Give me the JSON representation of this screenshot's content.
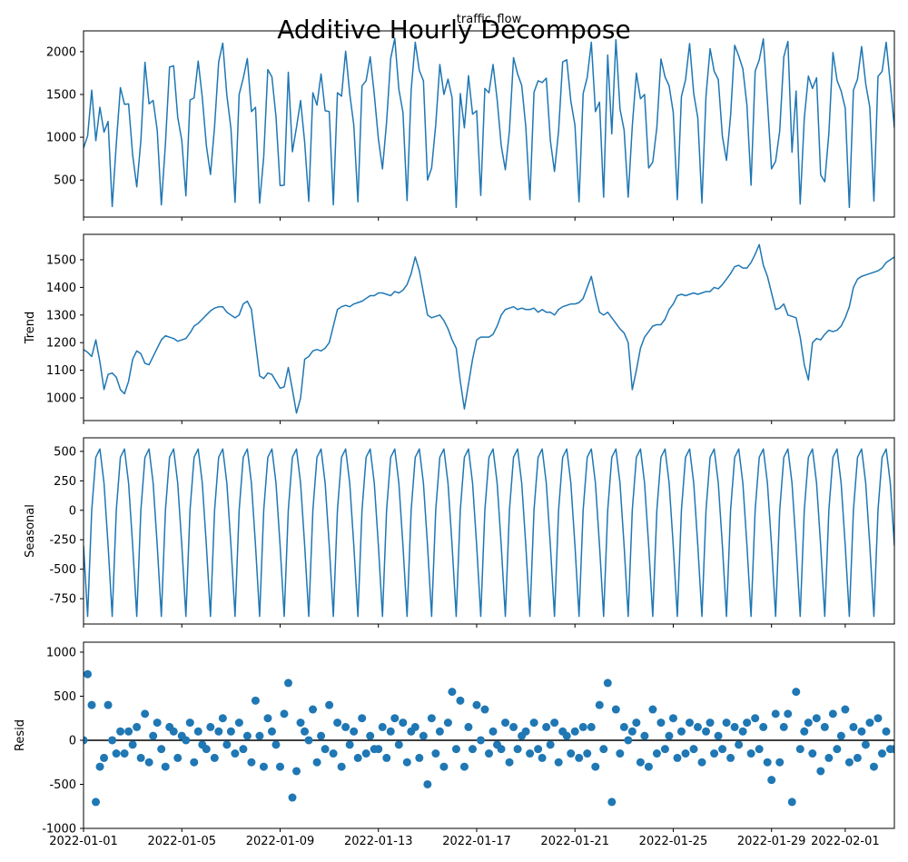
{
  "chart_data": {
    "type": "decompose",
    "title": "Additive Hourly Decompose",
    "x": [
      "2022-01-01T00:00",
      "2022-01-01T04:00",
      "2022-01-01T08:00",
      "2022-01-01T12:00",
      "2022-01-01T16:00",
      "2022-01-01T20:00",
      "2022-01-02T00:00",
      "2022-01-02T04:00",
      "2022-01-02T08:00",
      "2022-01-02T12:00",
      "2022-01-02T16:00",
      "2022-01-02T20:00",
      "2022-01-03T00:00",
      "2022-01-03T04:00",
      "2022-01-03T08:00",
      "2022-01-03T12:00",
      "2022-01-03T16:00",
      "2022-01-03T20:00",
      "2022-01-04T00:00",
      "2022-01-04T04:00",
      "2022-01-04T08:00",
      "2022-01-04T12:00",
      "2022-01-04T16:00",
      "2022-01-04T20:00",
      "2022-01-05T00:00",
      "2022-01-05T04:00",
      "2022-01-05T08:00",
      "2022-01-05T12:00",
      "2022-01-05T16:00",
      "2022-01-05T20:00",
      "2022-01-06T00:00",
      "2022-01-06T04:00",
      "2022-01-06T08:00",
      "2022-01-06T12:00",
      "2022-01-06T16:00",
      "2022-01-06T20:00",
      "2022-01-07T00:00",
      "2022-01-07T04:00",
      "2022-01-07T08:00",
      "2022-01-07T12:00",
      "2022-01-07T16:00",
      "2022-01-07T20:00",
      "2022-01-08T00:00",
      "2022-01-08T04:00",
      "2022-01-08T08:00",
      "2022-01-08T12:00",
      "2022-01-08T16:00",
      "2022-01-08T20:00",
      "2022-01-09T00:00",
      "2022-01-09T04:00",
      "2022-01-09T08:00",
      "2022-01-09T12:00",
      "2022-01-09T16:00",
      "2022-01-09T20:00",
      "2022-01-10T00:00",
      "2022-01-10T04:00",
      "2022-01-10T08:00",
      "2022-01-10T12:00",
      "2022-01-10T16:00",
      "2022-01-10T20:00",
      "2022-01-11T00:00",
      "2022-01-11T04:00",
      "2022-01-11T08:00",
      "2022-01-11T12:00",
      "2022-01-11T16:00",
      "2022-01-11T20:00",
      "2022-01-12T00:00",
      "2022-01-12T04:00",
      "2022-01-12T08:00",
      "2022-01-12T12:00",
      "2022-01-12T16:00",
      "2022-01-12T20:00",
      "2022-01-13T00:00",
      "2022-01-13T04:00",
      "2022-01-13T08:00",
      "2022-01-13T12:00",
      "2022-01-13T16:00",
      "2022-01-13T20:00",
      "2022-01-14T00:00",
      "2022-01-14T04:00",
      "2022-01-14T08:00",
      "2022-01-14T12:00",
      "2022-01-14T16:00",
      "2022-01-14T20:00",
      "2022-01-15T00:00",
      "2022-01-15T04:00",
      "2022-01-15T08:00",
      "2022-01-15T12:00",
      "2022-01-15T16:00",
      "2022-01-15T20:00",
      "2022-01-16T00:00",
      "2022-01-16T04:00",
      "2022-01-16T08:00",
      "2022-01-16T12:00",
      "2022-01-16T16:00",
      "2022-01-16T20:00",
      "2022-01-17T00:00",
      "2022-01-17T04:00",
      "2022-01-17T08:00",
      "2022-01-17T12:00",
      "2022-01-17T16:00",
      "2022-01-17T20:00",
      "2022-01-18T00:00",
      "2022-01-18T04:00",
      "2022-01-18T08:00",
      "2022-01-18T12:00",
      "2022-01-18T16:00",
      "2022-01-18T20:00",
      "2022-01-19T00:00",
      "2022-01-19T04:00",
      "2022-01-19T08:00",
      "2022-01-19T12:00",
      "2022-01-19T16:00",
      "2022-01-19T20:00",
      "2022-01-20T00:00",
      "2022-01-20T04:00",
      "2022-01-20T08:00",
      "2022-01-20T12:00",
      "2022-01-20T16:00",
      "2022-01-20T20:00",
      "2022-01-21T00:00",
      "2022-01-21T04:00",
      "2022-01-21T08:00",
      "2022-01-21T12:00",
      "2022-01-21T16:00",
      "2022-01-21T20:00",
      "2022-01-22T00:00",
      "2022-01-22T04:00",
      "2022-01-22T08:00",
      "2022-01-22T12:00",
      "2022-01-22T16:00",
      "2022-01-22T20:00",
      "2022-01-23T00:00",
      "2022-01-23T04:00",
      "2022-01-23T08:00",
      "2022-01-23T12:00",
      "2022-01-23T16:00",
      "2022-01-23T20:00",
      "2022-01-24T00:00",
      "2022-01-24T04:00",
      "2022-01-24T08:00",
      "2022-01-24T12:00",
      "2022-01-24T16:00",
      "2022-01-24T20:00",
      "2022-01-25T00:00",
      "2022-01-25T04:00",
      "2022-01-25T08:00",
      "2022-01-25T12:00",
      "2022-01-25T16:00",
      "2022-01-25T20:00",
      "2022-01-26T00:00",
      "2022-01-26T04:00",
      "2022-01-26T08:00",
      "2022-01-26T12:00",
      "2022-01-26T16:00",
      "2022-01-26T20:00",
      "2022-01-27T00:00",
      "2022-01-27T04:00",
      "2022-01-27T08:00",
      "2022-01-27T12:00",
      "2022-01-27T16:00",
      "2022-01-27T20:00",
      "2022-01-28T00:00",
      "2022-01-28T04:00",
      "2022-01-28T08:00",
      "2022-01-28T12:00",
      "2022-01-28T16:00",
      "2022-01-28T20:00",
      "2022-01-29T00:00",
      "2022-01-29T04:00",
      "2022-01-29T08:00",
      "2022-01-29T12:00",
      "2022-01-29T16:00",
      "2022-01-29T20:00",
      "2022-01-30T00:00",
      "2022-01-30T04:00",
      "2022-01-30T08:00",
      "2022-01-30T12:00",
      "2022-01-30T16:00",
      "2022-01-30T20:00",
      "2022-01-31T00:00",
      "2022-01-31T04:00",
      "2022-01-31T08:00",
      "2022-01-31T12:00",
      "2022-01-31T16:00",
      "2022-01-31T20:00",
      "2022-02-01T00:00",
      "2022-02-01T04:00",
      "2022-02-01T08:00",
      "2022-02-01T12:00",
      "2022-02-01T16:00",
      "2022-02-01T20:00",
      "2022-02-02T00:00",
      "2022-02-02T04:00",
      "2022-02-02T08:00",
      "2022-02-02T12:00",
      "2022-02-02T16:00",
      "2022-02-02T20:00",
      "2022-02-03T00:00"
    ],
    "xlim": [
      "2022-01-01T00:00",
      "2022-02-03T00:00"
    ],
    "xticks": [
      "2022-01-01",
      "2022-01-05",
      "2022-01-09",
      "2022-01-13",
      "2022-01-17",
      "2022-01-21",
      "2022-01-25",
      "2022-01-29",
      "2022-02-01"
    ],
    "panels": [
      {
        "type": "line",
        "title": "traffic_flow",
        "color": "#1f77b4",
        "ylim": [
          67,
          2243
        ],
        "yticks": [
          500,
          1000,
          1500,
          2000
        ],
        "values": [
          875,
          1015,
          1550,
          960,
          1350,
          1060,
          1185,
          190,
          925,
          1580,
          1385,
          1390,
          790,
          420,
          960,
          1875,
          1390,
          1430,
          1080,
          210,
          925,
          1820,
          1835,
          1235,
          960,
          315,
          1435,
          1460,
          1890,
          1465,
          900,
          565,
          1125,
          1880,
          2100,
          1490,
          1100,
          240,
          1500,
          1690,
          1920,
          1300,
          1350,
          230,
          770,
          1790,
          1705,
          1240,
          435,
          440,
          1760,
          830,
          1115,
          1430,
          940,
          250,
          1520,
          1375,
          1740,
          1310,
          1300,
          210,
          1520,
          1480,
          2005,
          1510,
          1140,
          245,
          1600,
          1660,
          1940,
          1500,
          980,
          630,
          1175,
          1920,
          2155,
          1560,
          1290,
          260,
          1550,
          2110,
          1780,
          1660,
          500,
          640,
          1145,
          1850,
          1500,
          1680,
          1460,
          180,
          1510,
          1110,
          1720,
          1270,
          1310,
          320,
          1570,
          1520,
          1850,
          1440,
          900,
          620,
          1075,
          1930,
          1740,
          1605,
          1120,
          270,
          1525,
          1660,
          1640,
          1690,
          960,
          600,
          1070,
          1880,
          1905,
          1420,
          1140,
          245,
          1510,
          1700,
          2110,
          1300,
          1410,
          300,
          1960,
          1040,
          2140,
          1330,
          1085,
          300,
          1130,
          1750,
          1450,
          1500,
          640,
          710,
          1115,
          1915,
          1705,
          1600,
          1290,
          270,
          1475,
          1670,
          2095,
          1510,
          1225,
          230,
          1485,
          2035,
          1770,
          1675,
          1010,
          730,
          1250,
          2075,
          1950,
          1800,
          1370,
          440,
          1770,
          1905,
          2150,
          1420,
          630,
          720,
          1075,
          1940,
          2120,
          825,
          1540,
          220,
          1220,
          1715,
          1570,
          1695,
          560,
          480,
          1045,
          1990,
          1665,
          1540,
          1340,
          180,
          1550,
          1680,
          2060,
          1625,
          1350,
          255,
          1710,
          1770,
          2110,
          1630,
          1110
        ]
      },
      {
        "type": "line",
        "ylabel": "Trend",
        "color": "#1f77b4",
        "ylim": [
          918,
          1592
        ],
        "yticks": [
          1000,
          1100,
          1200,
          1300,
          1400,
          1500
        ],
        "values": [
          1175,
          1165,
          1150,
          1210,
          1130,
          1030,
          1085,
          1090,
          1075,
          1030,
          1015,
          1060,
          1140,
          1170,
          1160,
          1125,
          1120,
          1150,
          1180,
          1210,
          1225,
          1220,
          1215,
          1205,
          1210,
          1215,
          1235,
          1260,
          1270,
          1285,
          1300,
          1315,
          1325,
          1330,
          1330,
          1310,
          1300,
          1290,
          1300,
          1340,
          1350,
          1320,
          1200,
          1080,
          1070,
          1090,
          1085,
          1060,
          1035,
          1040,
          1110,
          1030,
          945,
          1000,
          1140,
          1150,
          1170,
          1175,
          1170,
          1180,
          1200,
          1260,
          1320,
          1330,
          1335,
          1330,
          1340,
          1345,
          1350,
          1360,
          1370,
          1370,
          1380,
          1380,
          1375,
          1370,
          1385,
          1380,
          1390,
          1410,
          1450,
          1510,
          1460,
          1380,
          1300,
          1290,
          1295,
          1300,
          1280,
          1250,
          1210,
          1180,
          1060,
          960,
          1050,
          1140,
          1210,
          1220,
          1220,
          1220,
          1230,
          1260,
          1300,
          1320,
          1325,
          1330,
          1320,
          1325,
          1320,
          1320,
          1325,
          1310,
          1320,
          1310,
          1310,
          1300,
          1320,
          1330,
          1335,
          1340,
          1340,
          1345,
          1360,
          1400,
          1440,
          1370,
          1310,
          1300,
          1310,
          1290,
          1270,
          1250,
          1235,
          1200,
          1030,
          1100,
          1180,
          1220,
          1240,
          1260,
          1265,
          1265,
          1285,
          1320,
          1340,
          1370,
          1375,
          1370,
          1375,
          1380,
          1375,
          1380,
          1385,
          1385,
          1400,
          1395,
          1410,
          1430,
          1450,
          1475,
          1480,
          1470,
          1470,
          1490,
          1520,
          1555,
          1480,
          1440,
          1380,
          1320,
          1325,
          1340,
          1300,
          1295,
          1290,
          1220,
          1120,
          1065,
          1200,
          1215,
          1210,
          1230,
          1245,
          1240,
          1245,
          1260,
          1290,
          1330,
          1400,
          1430,
          1440,
          1445,
          1450,
          1455,
          1460,
          1470,
          1490,
          1500,
          1510
        ]
      },
      {
        "type": "line",
        "ylabel": "Seasonal",
        "color": "#1f77b4",
        "ylim": [
          -965,
          615
        ],
        "yticks": [
          -750,
          -500,
          -250,
          0,
          250,
          500
        ],
        "values": [
          -300,
          -900,
          0,
          450,
          520,
          230,
          -300,
          -900,
          0,
          450,
          520,
          230,
          -300,
          -900,
          0,
          450,
          520,
          230,
          -300,
          -900,
          0,
          450,
          520,
          230,
          -300,
          -900,
          0,
          450,
          520,
          230,
          -300,
          -900,
          0,
          450,
          520,
          230,
          -300,
          -900,
          0,
          450,
          520,
          230,
          -300,
          -900,
          0,
          450,
          520,
          230,
          -300,
          -900,
          0,
          450,
          520,
          230,
          -300,
          -900,
          0,
          450,
          520,
          230,
          -300,
          -900,
          0,
          450,
          520,
          230,
          -300,
          -900,
          0,
          450,
          520,
          230,
          -300,
          -900,
          0,
          450,
          520,
          230,
          -300,
          -900,
          0,
          450,
          520,
          230,
          -300,
          -900,
          0,
          450,
          520,
          230,
          -300,
          -900,
          0,
          450,
          520,
          230,
          -300,
          -900,
          0,
          450,
          520,
          230,
          -300,
          -900,
          0,
          450,
          520,
          230,
          -300,
          -900,
          0,
          450,
          520,
          230,
          -300,
          -900,
          0,
          450,
          520,
          230,
          -300,
          -900,
          0,
          450,
          520,
          230,
          -300,
          -900,
          0,
          450,
          520,
          230,
          -300,
          -900,
          0,
          450,
          520,
          230,
          -300,
          -900,
          0,
          450,
          520,
          230,
          -300,
          -900,
          0,
          450,
          520,
          230,
          -300,
          -900,
          0,
          450,
          520,
          230,
          -300,
          -900,
          0,
          450,
          520,
          230,
          -300,
          -900,
          0,
          450,
          520,
          230,
          -300,
          -900,
          0,
          450,
          520,
          230,
          -300,
          -900,
          0,
          450,
          520,
          230,
          -300,
          -900,
          0,
          450,
          520,
          230,
          -300,
          -900,
          0,
          450,
          520,
          230,
          -300,
          -900,
          0,
          450,
          520,
          230,
          -300
        ]
      },
      {
        "type": "scatter",
        "ylabel": "Resid",
        "color": "#1f77b4",
        "hline": 0,
        "ylim": [
          -1000,
          1113
        ],
        "yticks": [
          -1000,
          -500,
          0,
          500,
          1000
        ],
        "values": [
          0,
          750,
          400,
          -700,
          -300,
          -200,
          400,
          0,
          -150,
          100,
          -150,
          100,
          -50,
          150,
          -200,
          300,
          -250,
          50,
          200,
          -100,
          -300,
          150,
          100,
          -200,
          50,
          0,
          200,
          -250,
          100,
          -50,
          -100,
          150,
          -200,
          100,
          250,
          -50,
          100,
          -150,
          200,
          -100,
          50,
          -250,
          450,
          50,
          -300,
          250,
          100,
          -50,
          -300,
          300,
          650,
          -650,
          -350,
          200,
          100,
          0,
          350,
          -250,
          50,
          -100,
          400,
          -150,
          200,
          -300,
          150,
          -50,
          100,
          -200,
          250,
          -150,
          50,
          -100,
          -100,
          150,
          -200,
          100,
          250,
          -50,
          200,
          -250,
          100,
          150,
          -200,
          50,
          -500,
          250,
          -150,
          100,
          -300,
          200,
          550,
          -100,
          450,
          -300,
          150,
          -100,
          400,
          0,
          350,
          -150,
          100,
          -50,
          -100,
          200,
          -250,
          150,
          -100,
          50,
          100,
          -150,
          200,
          -100,
          -200,
          150,
          -50,
          200,
          -250,
          100,
          50,
          -150,
          100,
          -200,
          150,
          -150,
          150,
          -300,
          400,
          -100,
          650,
          -700,
          350,
          -150,
          150,
          0,
          100,
          200,
          -250,
          50,
          -300,
          350,
          -150,
          200,
          -100,
          50,
          250,
          -200,
          100,
          -150,
          200,
          -100,
          150,
          -250,
          100,
          200,
          -150,
          50,
          -100,
          200,
          -200,
          150,
          -50,
          100,
          200,
          -150,
          250,
          -100,
          150,
          -250,
          -450,
          300,
          -250,
          150,
          300,
          -700,
          550,
          -100,
          100,
          200,
          -150,
          250,
          -350,
          150,
          -200,
          300,
          -100,
          50,
          350,
          -250,
          150,
          -200,
          100,
          -50,
          200,
          -300,
          250,
          -150,
          100,
          -100,
          -100
        ]
      }
    ]
  }
}
